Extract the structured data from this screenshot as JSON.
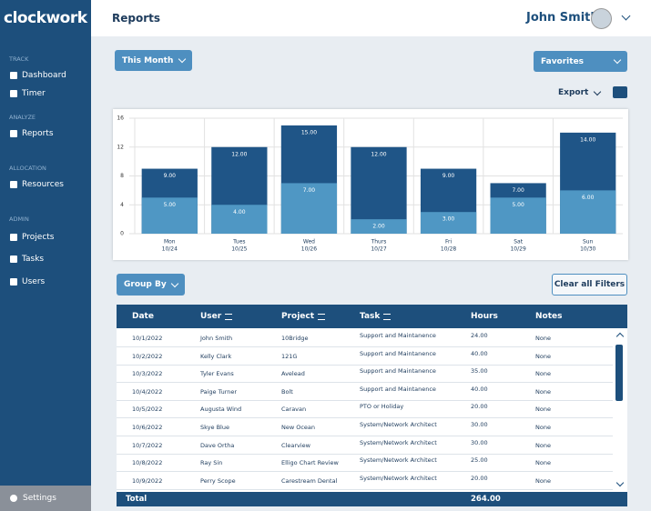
{
  "sidebar": {
    "logo": "clockwork",
    "sections": [
      {
        "heading": "TRACK",
        "items": [
          "Dashboard",
          "Timer"
        ]
      },
      {
        "heading": "ANALYZE",
        "items": [
          "Reports"
        ]
      },
      {
        "heading": "ALLOCATION",
        "items": [
          "Resources"
        ]
      },
      {
        "heading": "ADMIN",
        "items": [
          "Projects",
          "Tasks",
          "Users"
        ]
      }
    ],
    "settings": "Settings"
  },
  "header": {
    "title": "Reports",
    "user": "John Smith"
  },
  "filters": {
    "period": "This Month",
    "favorites": "Favorites",
    "export": "Export"
  },
  "chart_data": {
    "type": "bar",
    "categories": [
      "Mon",
      "Tues",
      "Wed",
      "Thurs",
      "Fri",
      "Sat",
      "Sun"
    ],
    "dates": [
      "10/24",
      "10/25",
      "10/26",
      "10/27",
      "10/28",
      "10/29",
      "10/30"
    ],
    "series": [
      {
        "color": "#1f5587",
        "values": [
          9,
          12,
          15,
          12,
          9,
          7,
          14
        ],
        "value_labels": [
          "9.00",
          "12.00",
          "15.00",
          "12.00",
          "9.00",
          "7.00",
          "14.00"
        ]
      },
      {
        "color": "#4f97c4",
        "values": [
          5,
          4,
          7,
          2,
          3,
          5,
          6
        ],
        "value_labels": [
          "5.00",
          "4.00",
          "7.00",
          "2.00",
          "3.00",
          "5.00",
          "6.00"
        ]
      }
    ],
    "ylim": [
      0,
      16
    ],
    "yticks": [
      0,
      4,
      8,
      12,
      16
    ],
    "grid": true
  },
  "table": {
    "group_by": "Group By",
    "clear_filters": "Clear all Filters",
    "columns": [
      "Date",
      "User",
      "Project",
      "Task",
      "Hours",
      "Notes"
    ],
    "rows": [
      [
        "10/1/2022",
        "John Smith",
        "10Bridge",
        "Support and Maintanence",
        "24.00",
        "None"
      ],
      [
        "10/2/2022",
        "Kelly Clark",
        "121G",
        "Support and Maintanence",
        "40.00",
        "None"
      ],
      [
        "10/3/2022",
        "Tyler Evans",
        "Avelead",
        "Support and Maintanence",
        "35.00",
        "None"
      ],
      [
        "10/4/2022",
        "Paige Turner",
        "Bolt",
        "Support and Maintanence",
        "40.00",
        "None"
      ],
      [
        "10/5/2022",
        "Augusta Wind",
        "Caravan",
        "PTO or Holiday",
        "20.00",
        "None"
      ],
      [
        "10/6/2022",
        "Skye Blue",
        "New Ocean",
        "System/Network Architect",
        "30.00",
        "None"
      ],
      [
        "10/7/2022",
        "Dave Ortha",
        "Clearview",
        "System/Network Architect",
        "30.00",
        "None"
      ],
      [
        "10/8/2022",
        "Ray Sin",
        "Elligo Chart Review",
        "System/Network Architect",
        "25.00",
        "None"
      ],
      [
        "10/9/2022",
        "Perry Scope",
        "Carestream Dental",
        "System/Network Architect",
        "20.00",
        "None"
      ]
    ],
    "total_label": "Total",
    "total": "264.00"
  }
}
